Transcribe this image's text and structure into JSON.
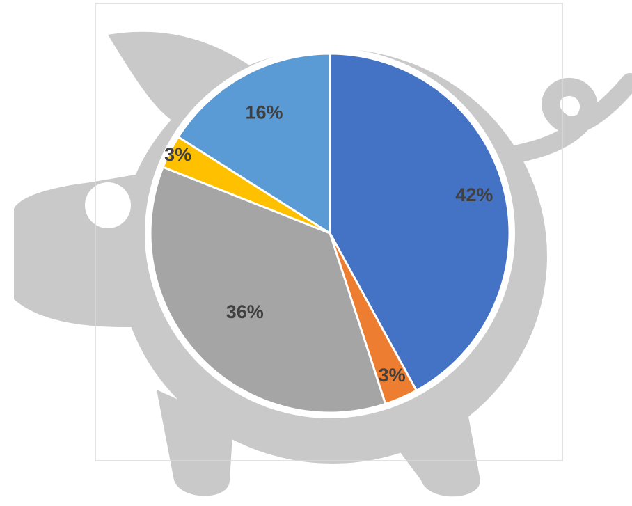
{
  "chart_data": {
    "type": "pie",
    "slices": [
      {
        "label": "42%",
        "value": 42,
        "color": "#4472C4"
      },
      {
        "label": "3%",
        "value": 3,
        "color": "#ED7D31"
      },
      {
        "label": "36%",
        "value": 36,
        "color": "#A5A5A5"
      },
      {
        "label": "3%",
        "value": 3,
        "color": "#FFC000"
      },
      {
        "label": "16%",
        "value": 16,
        "color": "#5B9BD5"
      }
    ],
    "start_angle_deg": 0,
    "direction": "clockwise",
    "background_shape": "piggy-bank"
  },
  "colors": {
    "pig": "#C9C9C9",
    "frame": "#D9D9D9",
    "slice_border": "#FFFFFF",
    "label_text": "#404040"
  }
}
